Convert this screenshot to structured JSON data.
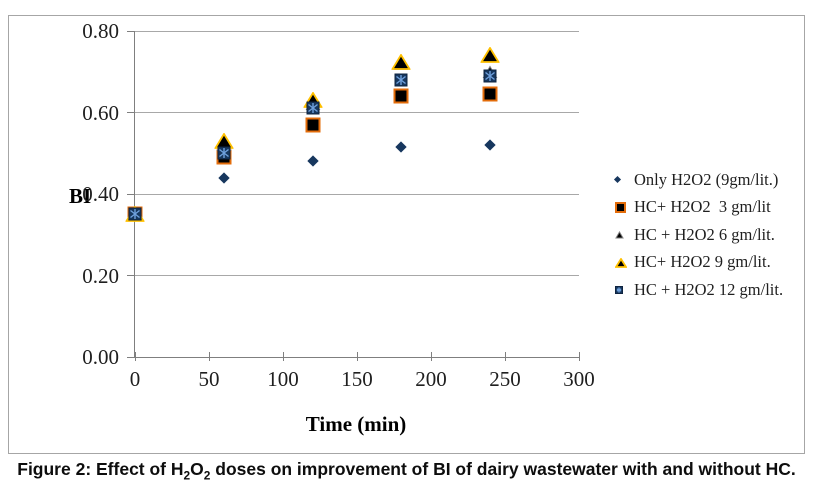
{
  "chart_data": {
    "type": "scatter",
    "xlabel": "Time (min)",
    "ylabel": "BI",
    "xlim": [
      0,
      300
    ],
    "ylim": [
      0.0,
      0.8
    ],
    "x_ticks": [
      0,
      50,
      100,
      150,
      200,
      250,
      300
    ],
    "y_ticks": [
      {
        "v": 0.0,
        "label": "0.00"
      },
      {
        "v": 0.2,
        "label": "0.20"
      },
      {
        "v": 0.4,
        "label": "0.40"
      },
      {
        "v": 0.6,
        "label": "0.60"
      },
      {
        "v": 0.8,
        "label": "0.80"
      }
    ],
    "grid": "horizontal",
    "legend_position": "right",
    "series": [
      {
        "name": "Only H2O2 (9gm/lit.)",
        "marker": "diamond",
        "fill": "#17375E",
        "border": "#17375E",
        "x": [
          0,
          60,
          120,
          180,
          240
        ],
        "y": [
          0.35,
          0.44,
          0.48,
          0.515,
          0.52
        ]
      },
      {
        "name": "HC+ H2O2  3 gm/lit",
        "marker": "square",
        "fill": "#000000",
        "border": "#E36C0A",
        "x": [
          0,
          60,
          120,
          180,
          240
        ],
        "y": [
          0.35,
          0.49,
          0.57,
          0.64,
          0.645
        ]
      },
      {
        "name": "HC + H2O2 6 gm/lit.",
        "marker": "triangle",
        "fill": "#000000",
        "border": "#7f7f7f",
        "x": [
          0,
          60,
          120,
          180,
          240
        ],
        "y": [
          0.35,
          0.52,
          0.62,
          0.72,
          0.7
        ]
      },
      {
        "name": "HC+ H2O2 9 gm/lit.",
        "marker": "triangle-yellow",
        "fill": "#000000",
        "border": "#FFC000",
        "x": [
          0,
          60,
          120,
          180,
          240
        ],
        "y": [
          0.35,
          0.53,
          0.63,
          0.725,
          0.74
        ]
      },
      {
        "name": "HC + H2O2 12 gm/lit.",
        "marker": "pattern-square",
        "fill": "#17375E",
        "border": "#0F2440",
        "pattern": "#6FA0DC",
        "x": [
          0,
          60,
          120,
          180,
          240
        ],
        "y": [
          0.35,
          0.5,
          0.61,
          0.68,
          0.69
        ]
      }
    ]
  },
  "caption": {
    "segments": [
      {
        "text": "Figure 2: Effect of H",
        "sub": false
      },
      {
        "text": "2",
        "sub": true
      },
      {
        "text": "O",
        "sub": false
      },
      {
        "text": "2",
        "sub": true
      },
      {
        "text": " doses on improvement of BI of dairy wastewater with and without HC.",
        "sub": false
      }
    ]
  },
  "colors": {
    "frame_border": "#a6a6a6",
    "axis": "#7f7f7f",
    "gridline": "#a8a8a8",
    "navy": "#17375E",
    "orange": "#E36C0A",
    "yellow": "#FFC000",
    "light_blue": "#6FA0DC"
  }
}
